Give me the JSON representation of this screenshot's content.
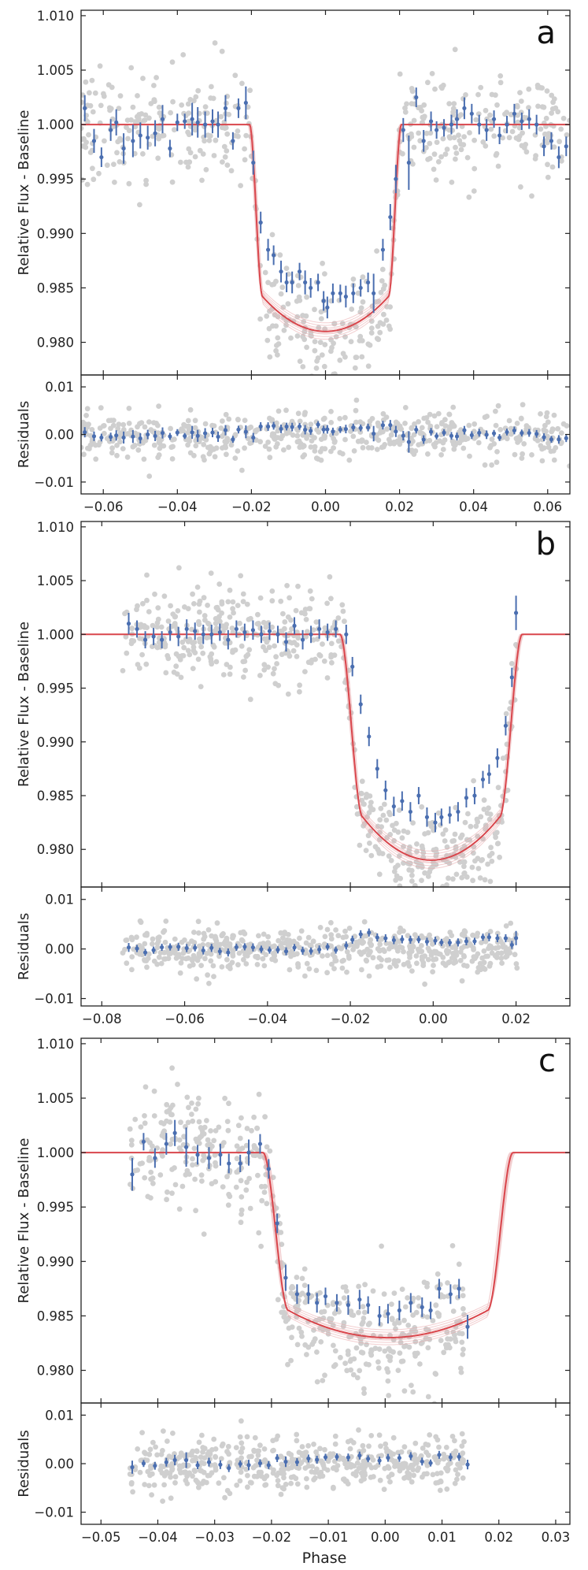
{
  "figure": {
    "shared_xlabel": "Phase"
  },
  "colors": {
    "binned": "#4a6eb0",
    "raw": "#cfcfcf",
    "model": "#d9464c",
    "model_band": "#e8a6a8",
    "axes": "#222222",
    "background": "#ffffff"
  },
  "chart_data": [
    {
      "type": "scatter",
      "panel_label": "a",
      "ylabel_top": "Relative Flux - Baseline",
      "ylabel_bottom": "Residuals",
      "xlim": [
        -0.066,
        0.066
      ],
      "xticks": [
        -0.06,
        -0.04,
        -0.02,
        0.0,
        0.02,
        0.04,
        0.06
      ],
      "xtick_labels": [
        "−0.06",
        "−0.04",
        "−0.02",
        "0.00",
        "0.02",
        "0.04",
        "0.06"
      ],
      "ylim_top": [
        0.977,
        1.0105
      ],
      "yticks_top": [
        0.98,
        0.985,
        0.99,
        0.995,
        1.0,
        1.005,
        1.01
      ],
      "ytick_labels_top": [
        "0.980",
        "0.985",
        "0.990",
        "0.995",
        "1.000",
        "1.005",
        "1.010"
      ],
      "ylim_bottom": [
        -0.0125,
        0.0125
      ],
      "yticks_bottom": [
        -0.01,
        0.0,
        0.01
      ],
      "ytick_labels_bottom": [
        "−0.01",
        "0.00",
        "0.01"
      ],
      "model": {
        "t1": -0.0205,
        "t4": 0.0205,
        "ingress": 0.0035,
        "depth": 0.0158,
        "curv": 0.0032
      },
      "binned_data": [
        [
          -0.065,
          1.0015,
          0.0012
        ],
        [
          -0.0625,
          0.9985,
          0.0011
        ],
        [
          -0.0605,
          0.997,
          0.0009
        ],
        [
          -0.058,
          0.9995,
          0.001
        ],
        [
          -0.0565,
          1.0002,
          0.0012
        ],
        [
          -0.0545,
          0.9978,
          0.0014
        ],
        [
          -0.052,
          0.9985,
          0.0015
        ],
        [
          -0.05,
          0.999,
          0.0012
        ],
        [
          -0.048,
          0.9988,
          0.0011
        ],
        [
          -0.046,
          0.9992,
          0.0012
        ],
        [
          -0.044,
          1.0005,
          0.0013
        ],
        [
          -0.042,
          0.9978,
          0.0008
        ],
        [
          -0.04,
          1.0002,
          0.0008
        ],
        [
          -0.038,
          1.0003,
          0.0007
        ],
        [
          -0.036,
          1.0005,
          0.0015
        ],
        [
          -0.0345,
          1.0002,
          0.0014
        ],
        [
          -0.0325,
          1.0,
          0.0012
        ],
        [
          -0.0305,
          1.0003,
          0.0011
        ],
        [
          -0.029,
          1.0,
          0.0012
        ],
        [
          -0.027,
          1.0015,
          0.0012
        ],
        [
          -0.025,
          0.9985,
          0.0008
        ],
        [
          -0.0235,
          1.0015,
          0.0009
        ],
        [
          -0.0215,
          1.002,
          0.0015
        ],
        [
          -0.0195,
          0.9965,
          0.0011
        ],
        [
          -0.0175,
          0.991,
          0.001
        ],
        [
          -0.0155,
          0.9885,
          0.001
        ],
        [
          -0.014,
          0.988,
          0.0009
        ],
        [
          -0.012,
          0.9865,
          0.001
        ],
        [
          -0.0105,
          0.9855,
          0.0009
        ],
        [
          -0.009,
          0.9855,
          0.001
        ],
        [
          -0.007,
          0.9865,
          0.0008
        ],
        [
          -0.0055,
          0.9855,
          0.0011
        ],
        [
          -0.004,
          0.985,
          0.0009
        ],
        [
          -0.002,
          0.9855,
          0.0008
        ],
        [
          -0.0005,
          0.9838,
          0.0009
        ],
        [
          0.0005,
          0.9832,
          0.001
        ],
        [
          0.002,
          0.9845,
          0.0009
        ],
        [
          0.004,
          0.9845,
          0.0008
        ],
        [
          0.0055,
          0.9842,
          0.001
        ],
        [
          0.0075,
          0.9845,
          0.0009
        ],
        [
          0.0095,
          0.985,
          0.0008
        ],
        [
          0.0115,
          0.9855,
          0.0009
        ],
        [
          0.013,
          0.9845,
          0.0018
        ],
        [
          0.0155,
          0.9885,
          0.001
        ],
        [
          0.0175,
          0.9915,
          0.0012
        ],
        [
          0.019,
          0.995,
          0.0013
        ],
        [
          0.021,
          0.9995,
          0.0011
        ],
        [
          0.0225,
          0.9965,
          0.0025
        ],
        [
          0.0245,
          1.0025,
          0.0009
        ],
        [
          0.0265,
          0.9985,
          0.001
        ],
        [
          0.0285,
          1.0003,
          0.0009
        ],
        [
          0.03,
          0.9995,
          0.0008
        ],
        [
          0.032,
          0.9997,
          0.0008
        ],
        [
          0.034,
          1.0,
          0.0009
        ],
        [
          0.0355,
          1.0005,
          0.0009
        ],
        [
          0.0375,
          1.0015,
          0.001
        ],
        [
          0.0395,
          1.001,
          0.0009
        ],
        [
          0.0415,
          1.0,
          0.0009
        ],
        [
          0.0435,
          0.9995,
          0.001
        ],
        [
          0.0455,
          1.0005,
          0.0008
        ],
        [
          0.047,
          0.999,
          0.0008
        ],
        [
          0.049,
          1.0,
          0.0008
        ],
        [
          0.051,
          1.001,
          0.0009
        ],
        [
          0.053,
          1.0003,
          0.0008
        ],
        [
          0.055,
          1.0005,
          0.0009
        ],
        [
          0.057,
          1.0,
          0.0009
        ],
        [
          0.059,
          0.998,
          0.0009
        ],
        [
          0.061,
          0.9985,
          0.0008
        ],
        [
          0.063,
          0.997,
          0.001
        ],
        [
          0.065,
          0.998,
          0.0009
        ]
      ],
      "raw_scatter": {
        "x_range": [
          -0.066,
          0.066
        ],
        "count": 560,
        "noise": 0.0025,
        "residual_noise": 0.0026
      }
    },
    {
      "type": "scatter",
      "panel_label": "b",
      "ylabel_top": "Relative Flux - Baseline",
      "ylabel_bottom": "Residuals",
      "xlim": [
        -0.085,
        0.033
      ],
      "xticks": [
        -0.08,
        -0.06,
        -0.04,
        -0.02,
        0.0,
        0.02
      ],
      "xtick_labels": [
        "−0.08",
        "−0.06",
        "−0.04",
        "−0.02",
        "0.00",
        "0.02"
      ],
      "ylim_top": [
        0.9765,
        1.0105
      ],
      "yticks_top": [
        0.98,
        0.985,
        0.99,
        0.995,
        1.0,
        1.005,
        1.01
      ],
      "ytick_labels_top": [
        "0.980",
        "0.985",
        "0.990",
        "0.995",
        "1.000",
        "1.005",
        "1.010"
      ],
      "ylim_bottom": [
        -0.0115,
        0.0125
      ],
      "yticks_bottom": [
        -0.01,
        0.0,
        0.01
      ],
      "ytick_labels_bottom": [
        "−0.01",
        "0.00",
        "0.01"
      ],
      "model": {
        "t1": -0.0225,
        "t4": 0.0215,
        "ingress": 0.0055,
        "depth": 0.017,
        "curv": 0.004
      },
      "binned_data": [
        [
          -0.0735,
          1.001,
          0.001
        ],
        [
          -0.0715,
          1.0005,
          0.0008
        ],
        [
          -0.0695,
          0.9995,
          0.0008
        ],
        [
          -0.0675,
          0.9998,
          0.0008
        ],
        [
          -0.0655,
          0.9995,
          0.0008
        ],
        [
          -0.0635,
          1.0002,
          0.0008
        ],
        [
          -0.0615,
          0.9998,
          0.0009
        ],
        [
          -0.0595,
          1.0005,
          0.0009
        ],
        [
          -0.0575,
          1.0003,
          0.0008
        ],
        [
          -0.0555,
          1.0,
          0.0009
        ],
        [
          -0.0535,
          1.0,
          0.0009
        ],
        [
          -0.0515,
          1.0002,
          0.0008
        ],
        [
          -0.0495,
          0.9995,
          0.0009
        ],
        [
          -0.0475,
          1.0005,
          0.0008
        ],
        [
          -0.0455,
          1.0002,
          0.0008
        ],
        [
          -0.0435,
          1.0004,
          0.0009
        ],
        [
          -0.0415,
          1.0,
          0.0008
        ],
        [
          -0.0395,
          1.0003,
          0.0008
        ],
        [
          -0.0375,
          1.0,
          0.0008
        ],
        [
          -0.0355,
          0.9993,
          0.0009
        ],
        [
          -0.0335,
          1.0008,
          0.0008
        ],
        [
          -0.0315,
          0.9995,
          0.0009
        ],
        [
          -0.0295,
          1.0,
          0.0008
        ],
        [
          -0.0275,
          1.0005,
          0.0009
        ],
        [
          -0.0255,
          1.0002,
          0.0008
        ],
        [
          -0.0235,
          1.0005,
          0.0008
        ],
        [
          -0.021,
          1.0,
          0.0009
        ],
        [
          -0.0195,
          0.997,
          0.0009
        ],
        [
          -0.0175,
          0.9935,
          0.0009
        ],
        [
          -0.0155,
          0.9905,
          0.0009
        ],
        [
          -0.0135,
          0.9875,
          0.0009
        ],
        [
          -0.0115,
          0.9855,
          0.0009
        ],
        [
          -0.0095,
          0.984,
          0.0009
        ],
        [
          -0.0075,
          0.9845,
          0.0009
        ],
        [
          -0.0055,
          0.9835,
          0.0009
        ],
        [
          -0.0035,
          0.985,
          0.0008
        ],
        [
          -0.0015,
          0.983,
          0.0009
        ],
        [
          0.0005,
          0.9825,
          0.0009
        ],
        [
          0.002,
          0.983,
          0.0008
        ],
        [
          0.004,
          0.9832,
          0.0008
        ],
        [
          0.006,
          0.9835,
          0.0009
        ],
        [
          0.008,
          0.9848,
          0.0009
        ],
        [
          0.01,
          0.985,
          0.0008
        ],
        [
          0.012,
          0.9865,
          0.0008
        ],
        [
          0.0135,
          0.987,
          0.0009
        ],
        [
          0.0155,
          0.9885,
          0.0009
        ],
        [
          0.0175,
          0.9915,
          0.0009
        ],
        [
          0.019,
          0.996,
          0.0009
        ],
        [
          0.02,
          1.002,
          0.0016
        ]
      ],
      "raw_scatter": {
        "x_range": [
          -0.075,
          0.0205
        ],
        "count": 560,
        "noise": 0.0022,
        "residual_noise": 0.0022
      }
    },
    {
      "type": "scatter",
      "panel_label": "c",
      "ylabel_top": "Relative Flux - Baseline",
      "ylabel_bottom": "Residuals",
      "xlabel": "Phase",
      "xlim": [
        -0.0535,
        0.0325
      ],
      "xticks": [
        -0.05,
        -0.04,
        -0.03,
        -0.02,
        -0.01,
        0.0,
        0.01,
        0.02,
        0.03
      ],
      "xtick_labels": [
        "−0.05",
        "−0.04",
        "−0.03",
        "−0.02",
        "−0.01",
        "0.00",
        "0.01",
        "0.02",
        "0.03"
      ],
      "ylim_top": [
        0.977,
        1.0105
      ],
      "yticks_top": [
        0.98,
        0.985,
        0.99,
        0.995,
        1.0,
        1.005,
        1.01
      ],
      "ytick_labels_top": [
        "0.980",
        "0.985",
        "0.990",
        "0.995",
        "1.000",
        "1.005",
        "1.010"
      ],
      "ylim_bottom": [
        -0.0125,
        0.0125
      ],
      "yticks_bottom": [
        -0.01,
        0.0,
        0.01
      ],
      "ytick_labels_bottom": [
        "−0.01",
        "0.00",
        "0.01"
      ],
      "model": {
        "t1": -0.0215,
        "t4": 0.0225,
        "ingress": 0.0045,
        "depth": 0.0145,
        "curv": 0.0025
      },
      "binned_data": [
        [
          -0.0445,
          0.998,
          0.0015
        ],
        [
          -0.0425,
          1.001,
          0.0008
        ],
        [
          -0.0405,
          0.9995,
          0.0009
        ],
        [
          -0.0385,
          1.0008,
          0.001
        ],
        [
          -0.037,
          1.0018,
          0.0012
        ],
        [
          -0.035,
          1.0005,
          0.0018
        ],
        [
          -0.033,
          0.9998,
          0.0009
        ],
        [
          -0.031,
          0.9995,
          0.001
        ],
        [
          -0.029,
          0.9998,
          0.001
        ],
        [
          -0.0275,
          0.999,
          0.0009
        ],
        [
          -0.0255,
          0.999,
          0.0008
        ],
        [
          -0.024,
          1.0,
          0.0012
        ],
        [
          -0.022,
          1.0008,
          0.0009
        ],
        [
          -0.0205,
          0.9985,
          0.0009
        ],
        [
          -0.019,
          0.9935,
          0.0009
        ],
        [
          -0.0175,
          0.9885,
          0.0012
        ],
        [
          -0.0155,
          0.987,
          0.0009
        ],
        [
          -0.0135,
          0.987,
          0.0009
        ],
        [
          -0.012,
          0.9862,
          0.0009
        ],
        [
          -0.0105,
          0.9868,
          0.0008
        ],
        [
          -0.0085,
          0.9862,
          0.0008
        ],
        [
          -0.0065,
          0.986,
          0.0009
        ],
        [
          -0.0045,
          0.9865,
          0.0009
        ],
        [
          -0.003,
          0.986,
          0.0008
        ],
        [
          -0.001,
          0.985,
          0.0009
        ],
        [
          0.0005,
          0.9852,
          0.0009
        ],
        [
          0.0025,
          0.9855,
          0.0009
        ],
        [
          0.0045,
          0.9862,
          0.0009
        ],
        [
          0.0065,
          0.9858,
          0.0009
        ],
        [
          0.008,
          0.9855,
          0.0008
        ],
        [
          0.0095,
          0.9875,
          0.0009
        ],
        [
          0.0115,
          0.987,
          0.0009
        ],
        [
          0.013,
          0.9875,
          0.0009
        ],
        [
          0.0145,
          0.984,
          0.0011
        ]
      ],
      "raw_scatter": {
        "x_range": [
          -0.045,
          0.0145
        ],
        "count": 500,
        "noise": 0.0026,
        "residual_noise": 0.0027
      }
    }
  ]
}
